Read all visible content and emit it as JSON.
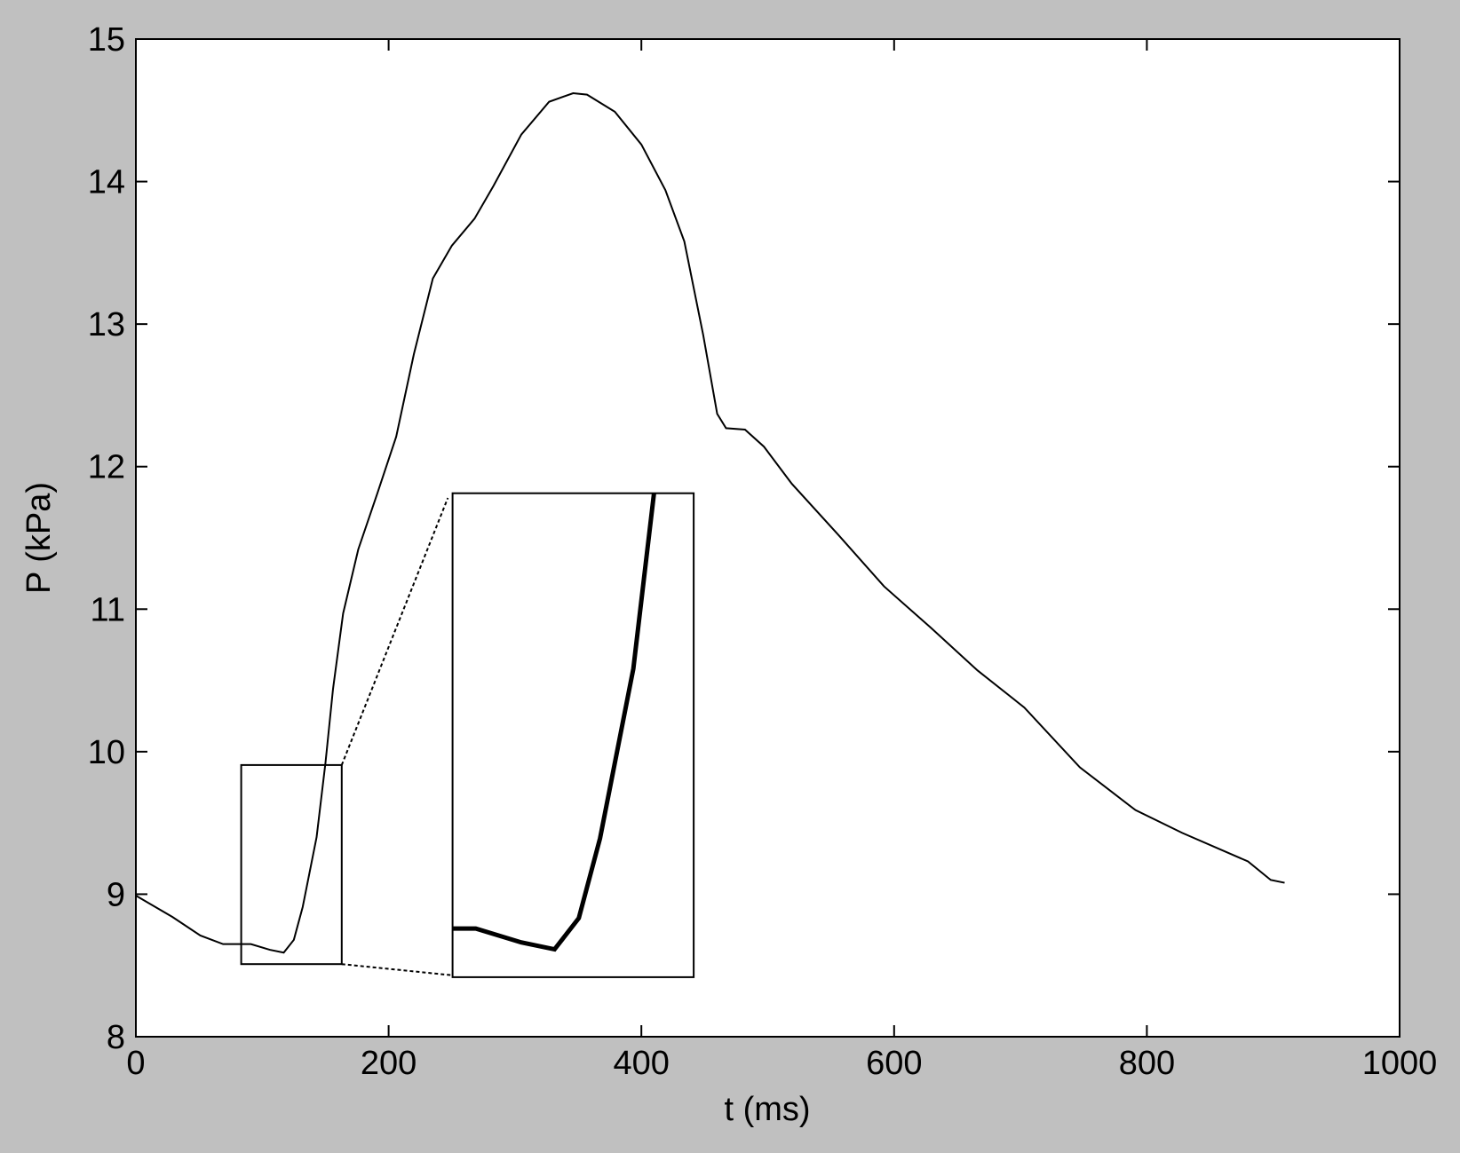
{
  "chart_data": {
    "type": "line",
    "x_label": "t (ms)",
    "y_label": "P (kPa)",
    "xlim": [
      0,
      1000
    ],
    "ylim": [
      8,
      15
    ],
    "xticks": [
      0,
      200,
      400,
      600,
      800,
      1000
    ],
    "yticks": [
      8,
      9,
      10,
      11,
      12,
      13,
      14,
      15
    ],
    "grid": false,
    "series": [
      {
        "name": "P",
        "color": "#000000",
        "x": [
          0,
          29,
          51,
          69,
          91,
          106,
          117,
          125,
          132,
          143,
          150,
          156,
          164,
          176,
          191,
          206,
          220,
          235,
          250,
          268,
          283,
          305,
          327,
          346,
          357,
          379,
          400,
          419,
          434,
          449,
          460,
          467,
          482,
          497,
          519,
          556,
          592,
          629,
          666,
          703,
          747,
          791,
          828,
          880,
          898,
          909
        ],
        "values": [
          8.99,
          8.84,
          8.71,
          8.65,
          8.65,
          8.61,
          8.59,
          8.68,
          8.91,
          9.4,
          9.92,
          10.44,
          10.97,
          11.42,
          11.81,
          12.21,
          12.79,
          13.32,
          13.55,
          13.74,
          13.97,
          14.33,
          14.56,
          14.62,
          14.61,
          14.49,
          14.26,
          13.94,
          13.58,
          12.92,
          12.37,
          12.27,
          12.26,
          12.14,
          11.88,
          11.52,
          11.16,
          10.87,
          10.57,
          10.31,
          9.89,
          9.59,
          9.43,
          9.23,
          9.1,
          9.08
        ]
      }
    ]
  }
}
